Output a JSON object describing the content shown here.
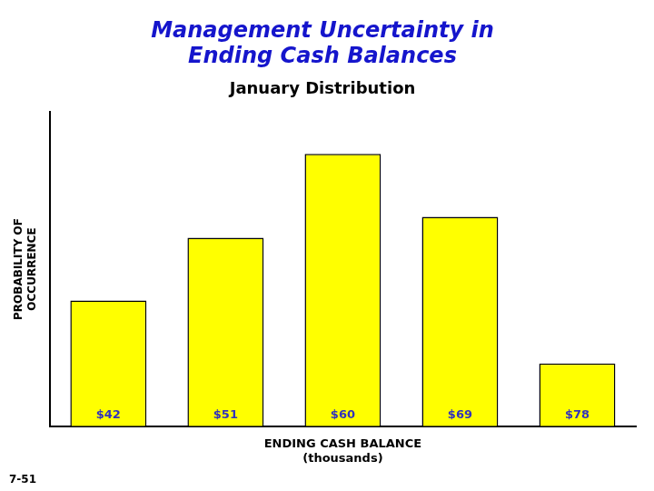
{
  "chart_data": {
    "type": "bar",
    "title": [
      "Management Uncertainty in",
      "Ending Cash Balances"
    ],
    "subtitle": "January Distribution",
    "categories": [
      "$42",
      "$51",
      "$60",
      "$69",
      "$78"
    ],
    "values": [
      3.0,
      4.5,
      6.5,
      5.0,
      1.5
    ],
    "color": "#FFFF00",
    "xlabel": [
      "ENDING CASH BALANCE",
      "(thousands)"
    ],
    "ylabel": [
      "PROBABILITY OF",
      "OCCURRENCE"
    ],
    "ylim": [
      0,
      7.5
    ],
    "grid": false,
    "legend": false,
    "tick_labels": false,
    "annotations": [
      "7-51"
    ]
  }
}
